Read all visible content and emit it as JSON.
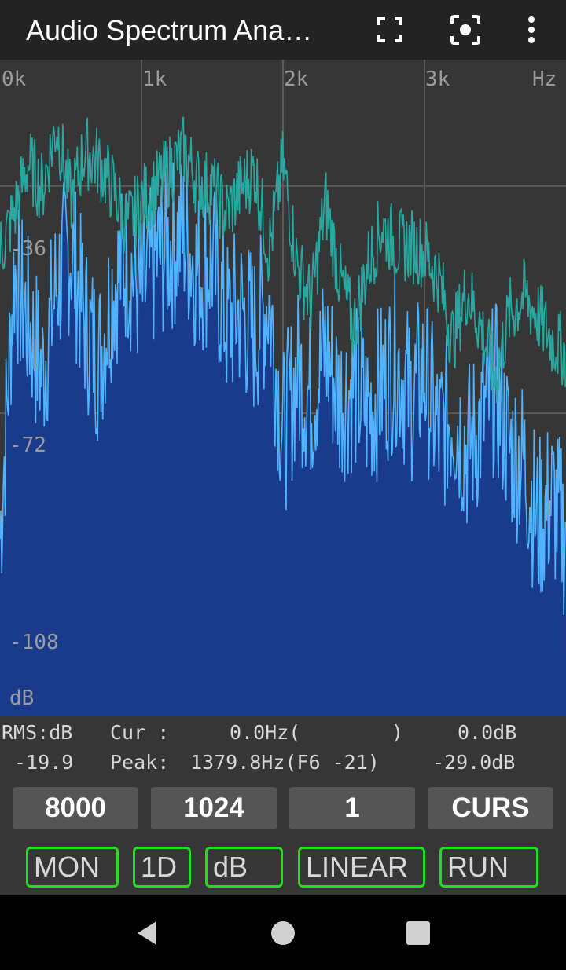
{
  "app": {
    "title": "Audio Spectrum Ana…",
    "icons": [
      "fullscreen-icon",
      "screenshot-icon",
      "more-vert-icon"
    ]
  },
  "plot": {
    "x_ticks": [
      "0k",
      "1k",
      "2k",
      "3k"
    ],
    "x_unit": "Hz",
    "y_ticks": [
      "-36",
      "-72",
      "-108"
    ],
    "y_unit": "dB",
    "colors": {
      "background": "#363636",
      "grid": "#5a5a5a",
      "fill": "#1a3a8c",
      "current_line": "#4fb3ff",
      "peak_hold_line": "#28a8a0"
    }
  },
  "chart_data": {
    "type": "area",
    "x_range_hz": [
      0,
      4000
    ],
    "y_range_db": [
      -120,
      -16
    ],
    "grid": true,
    "series": [
      {
        "x": [
          0,
          100,
          200,
          300,
          400,
          500,
          600,
          700,
          800,
          900,
          1000,
          1100,
          1200,
          1300,
          1400,
          1500,
          1600,
          1700,
          1800,
          1900,
          2000,
          2100,
          2200,
          2300,
          2400,
          2500,
          2600,
          2700,
          2800,
          2900,
          3000,
          3100,
          3200,
          3300,
          3400,
          3500,
          3600,
          3700,
          3800,
          3900,
          4000
        ],
        "y": [
          -86,
          -44,
          -52,
          -60,
          -46,
          -40,
          -52,
          -58,
          -46,
          -42,
          -48,
          -42,
          -40,
          -38,
          -44,
          -42,
          -52,
          -50,
          -54,
          -48,
          -70,
          -60,
          -64,
          -56,
          -64,
          -62,
          -66,
          -62,
          -58,
          -64,
          -60,
          -70,
          -66,
          -72,
          -68,
          -62,
          -72,
          -74,
          -84,
          -80,
          -86
        ]
      },
      {
        "x": [
          0,
          100,
          200,
          300,
          400,
          500,
          600,
          700,
          800,
          900,
          1000,
          1100,
          1200,
          1300,
          1400,
          1500,
          1600,
          1700,
          1800,
          1900,
          2000,
          2100,
          2200,
          2300,
          2400,
          2500,
          2600,
          2700,
          2800,
          2900,
          3000,
          3100,
          3200,
          3300,
          3400,
          3500,
          3600,
          3700,
          3800,
          3900,
          4000
        ],
        "y": [
          -44,
          -38,
          -30,
          -34,
          -24,
          -36,
          -28,
          -30,
          -34,
          -40,
          -36,
          -34,
          -31,
          -28,
          -33,
          -34,
          -38,
          -34,
          -31,
          -44,
          -30,
          -46,
          -52,
          -36,
          -48,
          -56,
          -46,
          -40,
          -43,
          -43,
          -44,
          -48,
          -58,
          -50,
          -56,
          -64,
          -54,
          -51,
          -54,
          -58,
          -60
        ]
      }
    ]
  },
  "readout": {
    "row1": {
      "rms_label": "RMS:dB",
      "cur_label": "Cur :",
      "cur_hz": "0.0Hz(",
      "cur_note": ")",
      "cur_db": "0.0dB"
    },
    "row2": {
      "rms_value": "-19.9",
      "peak_label": "Peak:",
      "peak_hz": "1379.8Hz(F6 -21)",
      "peak_db": "-29.0dB"
    }
  },
  "buttons": {
    "sample_rate": "8000",
    "fft_length": "1024",
    "average": "1",
    "cursor": "CURS"
  },
  "toggles": {
    "mon": "MON",
    "dimension": "1D",
    "scale": "dB",
    "axis": "LINEAR",
    "run": "RUN"
  }
}
